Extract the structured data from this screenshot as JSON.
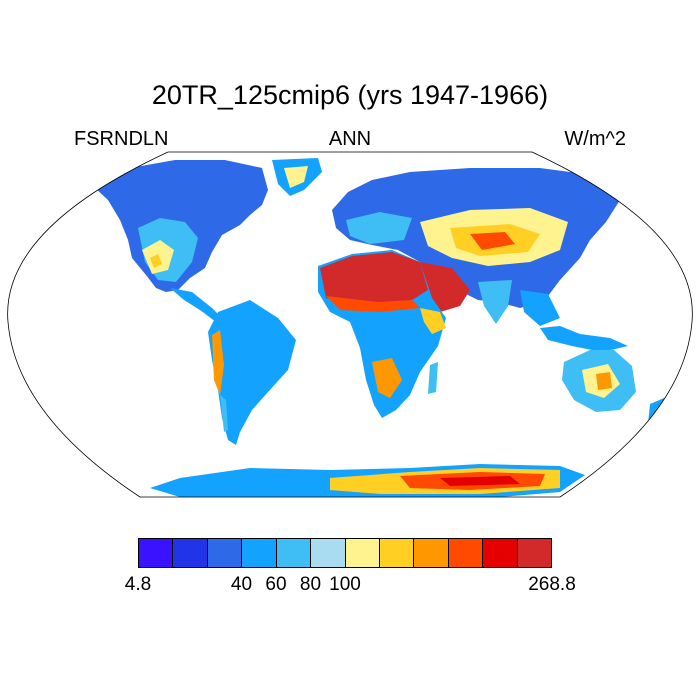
{
  "title": "20TR_125cmip6 (yrs 1947-1966)",
  "variable": "FSRNDLN",
  "season": "ANN",
  "units": "W/m^2",
  "colorbar": {
    "colors": [
      "#3a12ff",
      "#2234e8",
      "#2e6ae8",
      "#13a3ff",
      "#3fbef5",
      "#a9dcf0",
      "#fff38f",
      "#ffcf24",
      "#ff9700",
      "#ff4a00",
      "#e50000",
      "#d22a2a"
    ],
    "tick_labels": [
      "4.8",
      "40",
      "60",
      "80",
      "100",
      "268.8"
    ],
    "tick_levels": [
      0,
      3,
      4,
      5,
      6,
      12
    ]
  },
  "map": {
    "projection": "robinson",
    "ocean_color": "#ffffff",
    "outline_color": "#000000"
  }
}
